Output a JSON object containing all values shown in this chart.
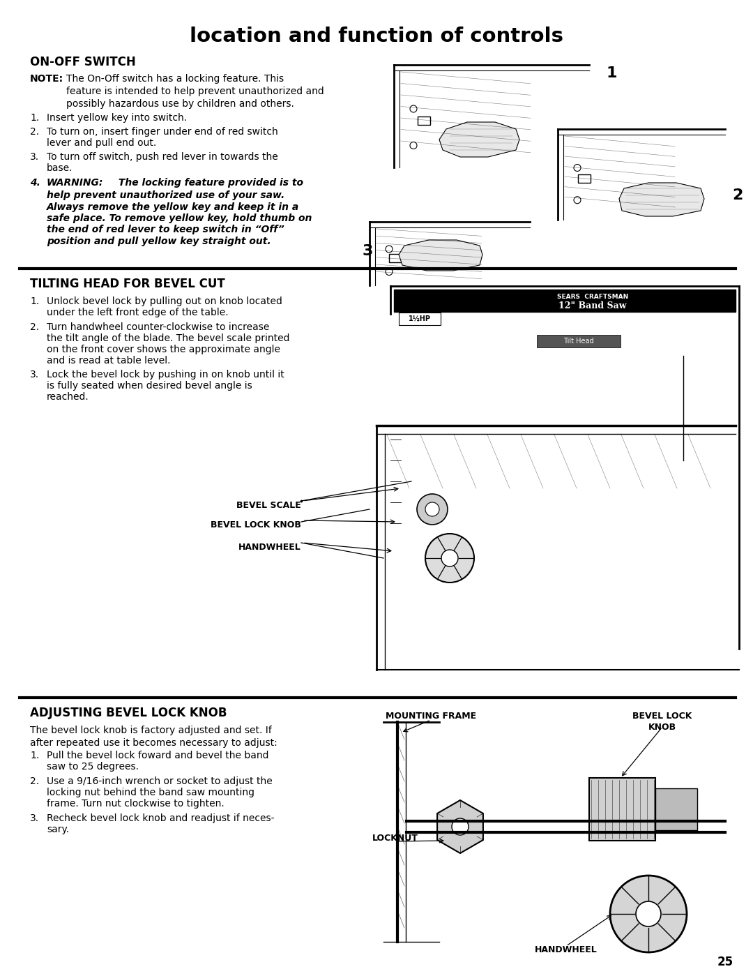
{
  "bg_color": "#ffffff",
  "title": "location and function of controls",
  "title_fontsize": 21,
  "s1_header": "ON-OFF SWITCH",
  "s1_note_bold": "NOTE:",
  "s1_note": "The On-Off switch has a locking feature. This\nfeature is intended to help prevent unauthorized and\npossibly hazardous use by children and others.",
  "s1_item1": "1.  Insert yellow key into switch.",
  "s1_item2_a": "2.  To turn on, insert finger under end of red switch",
  "s1_item2_b": "     lever and pull end out.",
  "s1_item3_a": "3.  To turn off switch, push red lever in towards the",
  "s1_item3_b": "     base.",
  "s1_warn_num": "4.",
  "s1_warn_bold": "WARNING:",
  "s1_warn_rest": " The locking feature provided is to",
  "s1_warn_lines": [
    "help prevent unauthorized use of your saw.",
    "Always remove the yellow key and keep it in a",
    "safe place. To remove yellow key, hold thumb on",
    "the end of red lever to keep switch in “Off”",
    "position and pull yellow key straight out."
  ],
  "img_label_1": "1",
  "img_label_2": "2",
  "img_label_3": "3",
  "s2_header": "TILTING HEAD FOR BEVEL CUT",
  "s2_item1_a": "1.  Unlock bevel lock by pulling out on knob located",
  "s2_item1_b": "     under the left front edge of the table.",
  "s2_item2_a": "2.  Turn handwheel counter-clockwise to increase",
  "s2_item2_b": "     the tilt angle of the blade. The bevel scale printed",
  "s2_item2_c": "     on the front cover shows the approximate angle",
  "s2_item2_d": "     and is read at table level.",
  "s2_item3_a": "3.  Lock the bevel lock by pushing in on knob until it",
  "s2_item3_b": "     is fully seated when desired bevel angle is",
  "s2_item3_c": "     reached.",
  "lbl_bevel_scale": "BEVEL SCALE",
  "lbl_bevel_lock": "BEVEL LOCK KNOB",
  "lbl_handwheel": "HANDWHEEL",
  "s3_header": "ADJUSTING BEVEL LOCK KNOB",
  "s3_intro": "The bevel lock knob is factory adjusted and set. If\nafter repeated use it becomes necessary to adjust:",
  "s3_item1_a": "1.  Pull the bevel lock foward and bevel the band",
  "s3_item1_b": "     saw to 25 degrees.",
  "s3_item2_a": "2.  Use a 9/16-inch wrench or socket to adjust the",
  "s3_item2_b": "     locking nut behind the band saw mounting",
  "s3_item2_c": "     frame. Turn nut clockwise to tighten.",
  "s3_item3_a": "3.  Recheck bevel lock knob and readjust if neces-",
  "s3_item3_b": "     sary.",
  "lbl_mounting_frame": "MOUNTING FRAME",
  "lbl_bevel_lock_knob": "BEVEL LOCK\nKNOB",
  "lbl_locknut": "LOCKNUT",
  "lbl_handwheel2": "HANDWHEEL",
  "page_num": "25"
}
